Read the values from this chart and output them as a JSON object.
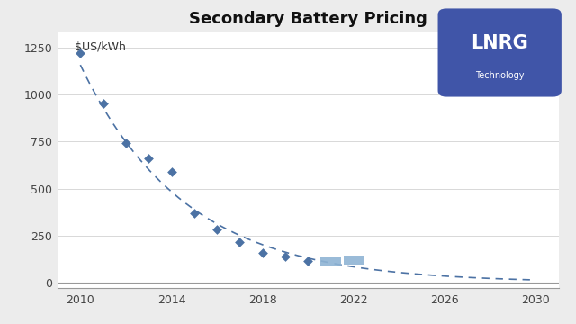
{
  "title": "Secondary Battery Pricing",
  "ylabel": "$US/kWh",
  "xlim": [
    2009.0,
    2031.0
  ],
  "ylim": [
    -30,
    1330
  ],
  "xticks": [
    2010,
    2014,
    2018,
    2022,
    2026,
    2030
  ],
  "yticks": [
    0,
    250,
    500,
    750,
    1000,
    1250
  ],
  "data_years": [
    2010,
    2011,
    2012,
    2013,
    2014,
    2015,
    2016,
    2017,
    2018,
    2019,
    2020
  ],
  "data_values": [
    1220,
    950,
    740,
    660,
    590,
    370,
    285,
    215,
    160,
    140,
    115
  ],
  "estimate_years": [
    2021,
    2022
  ],
  "estimate_values": [
    115,
    120
  ],
  "bg_color": "#ececec",
  "plot_bg_color": "#ffffff",
  "marker_color": "#4c72a4",
  "line_color": "#4c72a4",
  "estimate_color": "#8fb4d4",
  "logo_bg": "#4055a8",
  "logo_text": "LNRG",
  "logo_sub": "Technology"
}
